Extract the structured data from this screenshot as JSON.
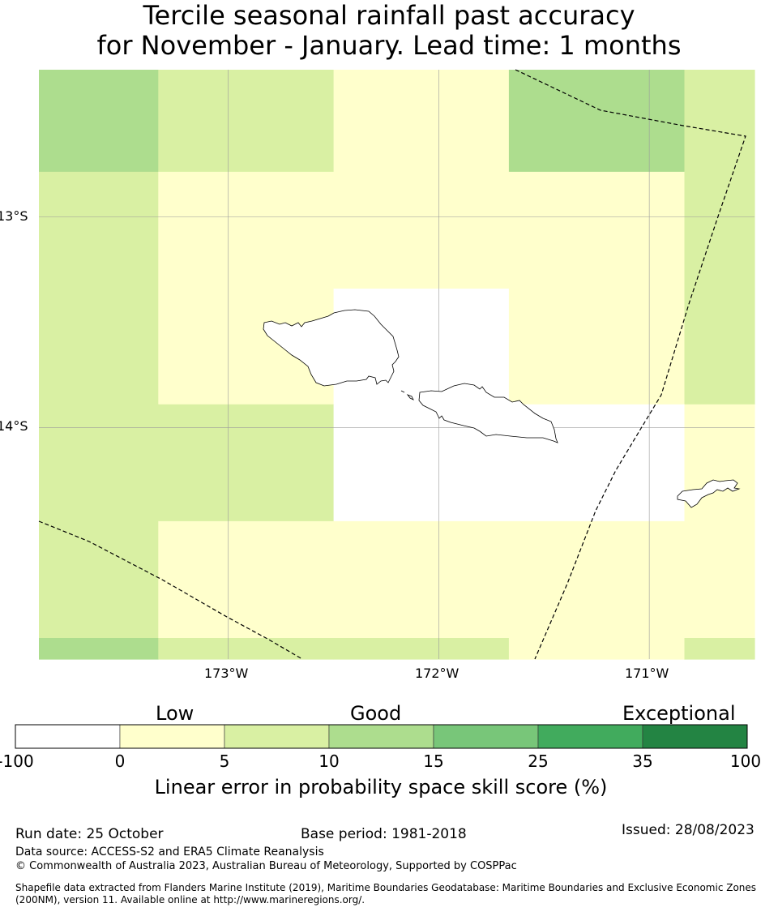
{
  "title": {
    "line1": "Tercile seasonal rainfall past accuracy",
    "line2": "for November - January. Lead time: 1 months"
  },
  "map": {
    "lat_labels": [
      "13°S",
      "14°S"
    ],
    "lon_labels": [
      "173°W",
      "172°W",
      "171°W"
    ],
    "extent": {
      "lon_min": -173.9,
      "lon_max": -170.5,
      "lat_min": -15.1,
      "lat_max": -12.3
    },
    "grid_lons": [
      -173.0,
      -172.0,
      -171.0
    ],
    "grid_lats": [
      -13.0,
      -14.0
    ],
    "cell_lon_edges": [
      -173.9,
      -173.333,
      -172.5,
      -171.667,
      -170.833,
      -170.5
    ],
    "cell_lat_edges": [
      -12.3,
      -12.785,
      -13.34,
      -13.89,
      -14.445,
      -15.0,
      -15.1
    ],
    "skill_grid": [
      [
        10,
        5,
        0,
        10,
        5
      ],
      [
        5,
        0,
        0,
        0,
        5
      ],
      [
        5,
        0,
        -10,
        0,
        5
      ],
      [
        5,
        5,
        -10,
        -10,
        0
      ],
      [
        5,
        0,
        0,
        0,
        0
      ],
      [
        10,
        5,
        5,
        0,
        5
      ]
    ],
    "features": [
      "Savaii island",
      "Upolu island",
      "Tutuila island",
      "EEZ maritime boundary"
    ]
  },
  "colorbar": {
    "category_labels": [
      "Low",
      "Good",
      "Exceptional"
    ],
    "ticks": [
      "-100",
      "0",
      "5",
      "10",
      "15",
      "25",
      "35",
      "100"
    ],
    "bins": [
      {
        "from": -100,
        "to": 0,
        "color": "#ffffff"
      },
      {
        "from": 0,
        "to": 5,
        "color": "#ffffcc"
      },
      {
        "from": 5,
        "to": 10,
        "color": "#d9f0a3"
      },
      {
        "from": 10,
        "to": 15,
        "color": "#addd8e"
      },
      {
        "from": 15,
        "to": 25,
        "color": "#78c679"
      },
      {
        "from": 25,
        "to": 35,
        "color": "#41ab5d"
      },
      {
        "from": 35,
        "to": 100,
        "color": "#238443"
      }
    ],
    "label": "Linear error in probability space skill score (%)"
  },
  "footer": {
    "run_date": "Run date: 25 October",
    "base_period": "Base period: 1981-2018",
    "issued": "Issued: 28/08/2023",
    "data_source": "Data source: ACCESS-S2 and ERA5 Climate Reanalysis",
    "copyright": "© Commonwealth of Australia 2023, Australian Bureau of Meteorology, Supported by COSPPac",
    "shapefile_line1": "Shapefile data extracted from Flanders Marine Institute (2019), Maritime Boundaries Geodatabase: Maritime Boundaries and Exclusive Economic Zones",
    "shapefile_line2": "(200NM), version 11. Available online at http://www.marineregions.org/."
  }
}
